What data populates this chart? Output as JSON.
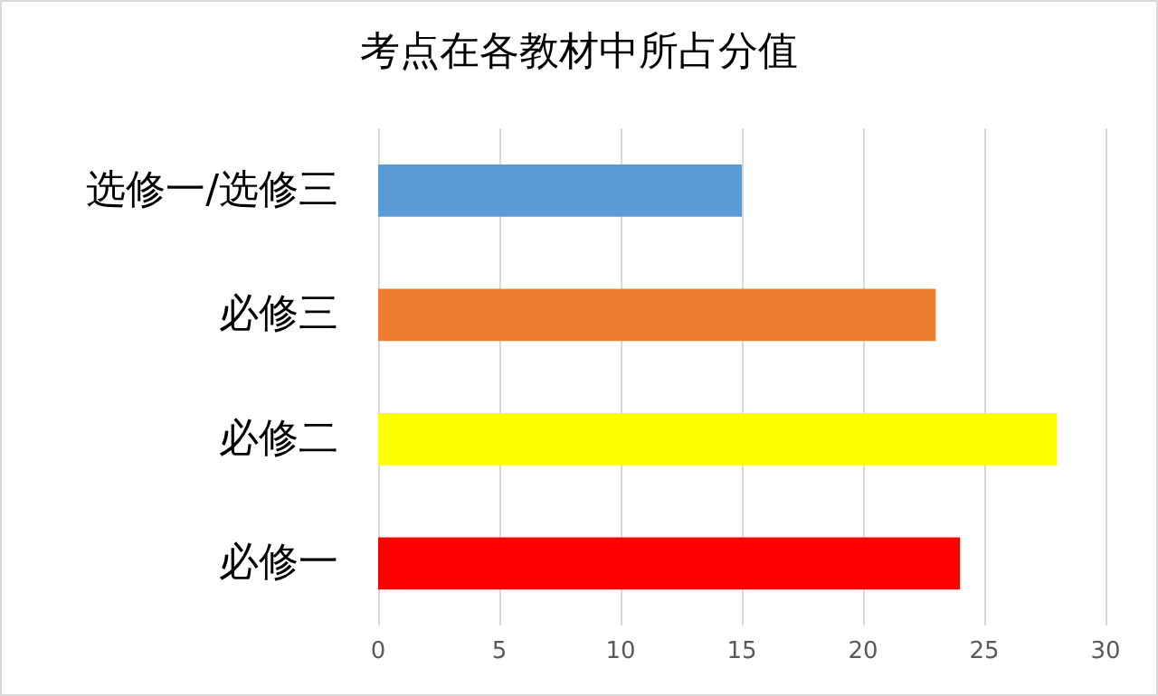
{
  "chart_data": {
    "type": "bar",
    "orientation": "horizontal",
    "title": "考点在各教材中所占分值",
    "categories": [
      "选修一/选修三",
      "必修三",
      "必修二",
      "必修一"
    ],
    "values": [
      15,
      23,
      28,
      24
    ],
    "colors": [
      "#5b9bd5",
      "#ed7d31",
      "#ffff00",
      "#ff0000"
    ],
    "xlim": [
      0,
      30
    ],
    "xticks": [
      0,
      5,
      10,
      15,
      20,
      25,
      30
    ],
    "grid": "x"
  }
}
